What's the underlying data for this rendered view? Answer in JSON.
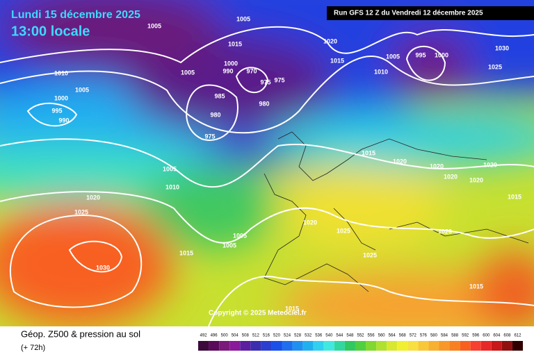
{
  "header": {
    "date": "Lundi 15 décembre 2025",
    "time": "13:00 locale",
    "run": "Run GFS 12 Z du Vendredi 12 décembre 2025"
  },
  "map": {
    "isobar_labels": [
      "1005",
      "1005",
      "1020",
      "1015",
      "1005",
      "995",
      "1000",
      "1030",
      "1025",
      "1010",
      "1005",
      "1010",
      "1005",
      "1000",
      "995",
      "990",
      "1015",
      "1000",
      "990",
      "970",
      "975",
      "975",
      "985",
      "980",
      "980",
      "975",
      "1015",
      "1020",
      "1020",
      "1020",
      "1020",
      "1020",
      "1005",
      "1010",
      "1020",
      "1025",
      "1020",
      "1025",
      "1020",
      "1015",
      "1005",
      "1005",
      "1015",
      "1030",
      "1025",
      "1015",
      "1015"
    ]
  },
  "footer": {
    "title": "Géop. Z500 & pression au sol",
    "lead": "(+ 72h)",
    "copyright": "Copyright © 2025 Meteociel.fr"
  },
  "colorbar": {
    "ticks": [
      492,
      496,
      500,
      504,
      508,
      512,
      516,
      520,
      524,
      528,
      532,
      536,
      540,
      544,
      548,
      552,
      556,
      560,
      564,
      568,
      572,
      576,
      580,
      584,
      588,
      592,
      596,
      600,
      604,
      608,
      612
    ],
    "colors": [
      "#3b0a3b",
      "#5a0a5a",
      "#7a1a7a",
      "#8a1a9a",
      "#5c1fa0",
      "#3b2fb0",
      "#2a3fd0",
      "#1a4fe8",
      "#1f6ef0",
      "#2090f0",
      "#20b0f0",
      "#30d0f0",
      "#40e8e0",
      "#30d8a0",
      "#30c860",
      "#50d040",
      "#80d830",
      "#b0e030",
      "#d8e830",
      "#f0f030",
      "#f8e040",
      "#f8c838",
      "#f8b030",
      "#f89828",
      "#f88020",
      "#f86020",
      "#f84030",
      "#e82828",
      "#c81818",
      "#901010",
      "#300000"
    ]
  }
}
